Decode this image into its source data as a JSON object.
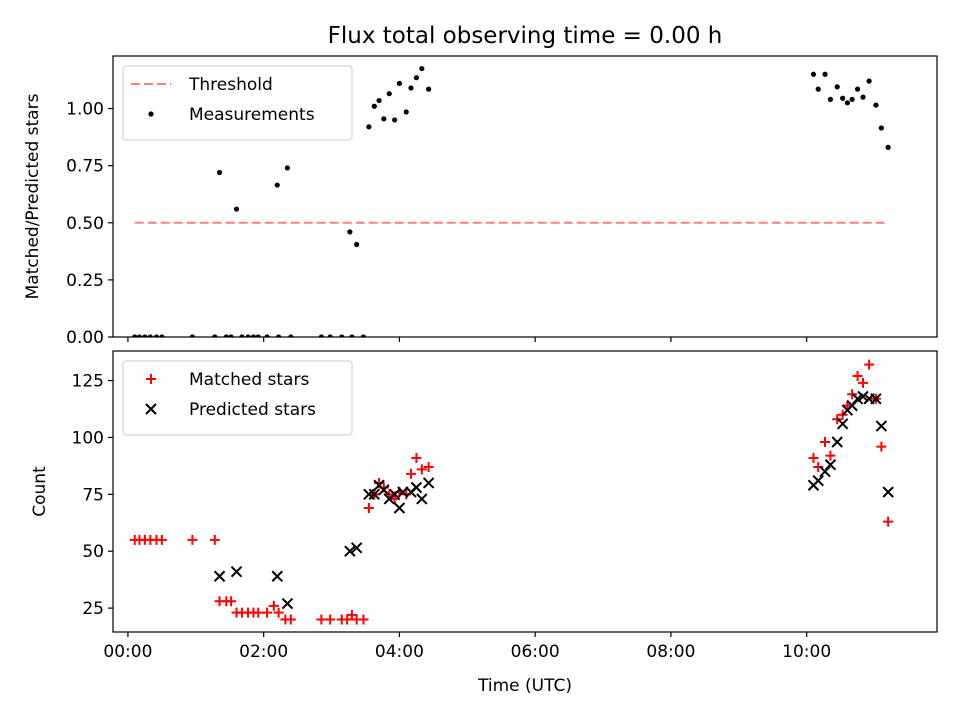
{
  "title": "Flux total observing time = 0.00 h",
  "colors": {
    "threshold": "#ff7f7f",
    "measurements": "#000000",
    "matched": "#ff0000",
    "predicted": "#000000"
  },
  "chart_data": [
    {
      "type": "scatter",
      "ylabel": "Matched/Predicted stars",
      "xlim": [
        -0.22,
        11.92
      ],
      "ylim": [
        0.0,
        1.23
      ],
      "yticks": [
        0.0,
        0.25,
        0.5,
        0.75,
        1.0
      ],
      "ytick_labels": [
        "0.00",
        "0.25",
        "0.50",
        "0.75",
        "1.00"
      ],
      "legend_position": "upper-left",
      "series": [
        {
          "name": "Threshold",
          "kind": "dashed-line",
          "x": [
            0.1,
            11.2
          ],
          "y": [
            0.5,
            0.5
          ]
        },
        {
          "name": "Measurements",
          "kind": "dot",
          "points": [
            [
              0.1,
              0.0
            ],
            [
              0.17,
              0.0
            ],
            [
              0.25,
              0.0
            ],
            [
              0.33,
              0.0
            ],
            [
              0.42,
              0.0
            ],
            [
              0.5,
              0.0
            ],
            [
              0.95,
              0.0
            ],
            [
              1.28,
              0.0
            ],
            [
              1.35,
              0.72
            ],
            [
              1.45,
              0.0
            ],
            [
              1.52,
              0.0
            ],
            [
              1.6,
              0.56
            ],
            [
              1.68,
              0.0
            ],
            [
              1.77,
              0.0
            ],
            [
              1.85,
              0.0
            ],
            [
              1.92,
              0.0
            ],
            [
              2.05,
              0.0
            ],
            [
              2.2,
              0.665
            ],
            [
              2.22,
              0.0
            ],
            [
              2.35,
              0.74
            ],
            [
              2.4,
              0.0
            ],
            [
              2.85,
              0.0
            ],
            [
              2.98,
              0.0
            ],
            [
              3.15,
              0.0
            ],
            [
              3.27,
              0.46
            ],
            [
              3.3,
              0.0
            ],
            [
              3.37,
              0.405
            ],
            [
              3.47,
              0.0
            ],
            [
              3.55,
              0.92
            ],
            [
              3.63,
              1.01
            ],
            [
              3.7,
              1.035
            ],
            [
              3.77,
              0.955
            ],
            [
              3.85,
              1.065
            ],
            [
              3.93,
              0.95
            ],
            [
              4.0,
              1.11
            ],
            [
              4.1,
              0.985
            ],
            [
              4.17,
              1.09
            ],
            [
              4.25,
              1.135
            ],
            [
              4.33,
              1.175
            ],
            [
              4.43,
              1.085
            ],
            [
              10.1,
              1.15
            ],
            [
              10.17,
              1.085
            ],
            [
              10.27,
              1.15
            ],
            [
              10.35,
              1.04
            ],
            [
              10.45,
              1.095
            ],
            [
              10.53,
              1.045
            ],
            [
              10.6,
              1.025
            ],
            [
              10.67,
              1.04
            ],
            [
              10.75,
              1.085
            ],
            [
              10.83,
              1.05
            ],
            [
              10.92,
              1.12
            ],
            [
              11.02,
              1.015
            ],
            [
              11.1,
              0.915
            ],
            [
              11.2,
              0.83
            ]
          ]
        }
      ]
    },
    {
      "type": "scatter",
      "xlabel": "Time (UTC)",
      "ylabel": "Count",
      "xlim": [
        -0.22,
        11.92
      ],
      "ylim": [
        14.5,
        138
      ],
      "yticks": [
        25,
        50,
        75,
        100,
        125
      ],
      "ytick_labels": [
        "25",
        "50",
        "75",
        "100",
        "125"
      ],
      "xticks": [
        0,
        2,
        4,
        6,
        8,
        10
      ],
      "xtick_labels": [
        "00:00",
        "02:00",
        "04:00",
        "06:00",
        "08:00",
        "10:00"
      ],
      "legend_position": "upper-left",
      "series": [
        {
          "name": "Matched stars",
          "kind": "plus",
          "points": [
            [
              0.1,
              55
            ],
            [
              0.17,
              55
            ],
            [
              0.25,
              55
            ],
            [
              0.33,
              55
            ],
            [
              0.42,
              55
            ],
            [
              0.5,
              55
            ],
            [
              0.95,
              55
            ],
            [
              1.28,
              55
            ],
            [
              1.35,
              28
            ],
            [
              1.45,
              28
            ],
            [
              1.52,
              28
            ],
            [
              1.6,
              23
            ],
            [
              1.68,
              23
            ],
            [
              1.77,
              23
            ],
            [
              1.85,
              23
            ],
            [
              1.92,
              23
            ],
            [
              2.05,
              23
            ],
            [
              2.15,
              26
            ],
            [
              2.22,
              23
            ],
            [
              2.32,
              20
            ],
            [
              2.4,
              20
            ],
            [
              2.85,
              20
            ],
            [
              2.98,
              20
            ],
            [
              3.15,
              20
            ],
            [
              3.23,
              20
            ],
            [
              3.3,
              22
            ],
            [
              3.37,
              20
            ],
            [
              3.47,
              20
            ],
            [
              3.55,
              69
            ],
            [
              3.63,
              75
            ],
            [
              3.7,
              80
            ],
            [
              3.77,
              78
            ],
            [
              3.85,
              75
            ],
            [
              3.93,
              73
            ],
            [
              4.0,
              76
            ],
            [
              4.1,
              75
            ],
            [
              4.17,
              84
            ],
            [
              4.25,
              91
            ],
            [
              4.33,
              86
            ],
            [
              4.43,
              87
            ],
            [
              10.1,
              91
            ],
            [
              10.17,
              87
            ],
            [
              10.27,
              98
            ],
            [
              10.35,
              92
            ],
            [
              10.45,
              108
            ],
            [
              10.53,
              110
            ],
            [
              10.6,
              114
            ],
            [
              10.67,
              119
            ],
            [
              10.75,
              127
            ],
            [
              10.83,
              124
            ],
            [
              10.92,
              132
            ],
            [
              11.02,
              117
            ],
            [
              11.1,
              96
            ],
            [
              11.2,
              63
            ]
          ]
        },
        {
          "name": "Predicted stars",
          "kind": "x",
          "points": [
            [
              1.35,
              39
            ],
            [
              1.6,
              41
            ],
            [
              2.2,
              39
            ],
            [
              2.35,
              27
            ],
            [
              3.27,
              50
            ],
            [
              3.37,
              51.5
            ],
            [
              3.55,
              75
            ],
            [
              3.63,
              75
            ],
            [
              3.7,
              79
            ],
            [
              3.77,
              77
            ],
            [
              3.85,
              73
            ],
            [
              3.93,
              75
            ],
            [
              4.0,
              69
            ],
            [
              4.05,
              76
            ],
            [
              4.17,
              76
            ],
            [
              4.25,
              78
            ],
            [
              4.33,
              73
            ],
            [
              4.43,
              80
            ],
            [
              10.1,
              79
            ],
            [
              10.17,
              81
            ],
            [
              10.27,
              85
            ],
            [
              10.35,
              88
            ],
            [
              10.45,
              98
            ],
            [
              10.53,
              106
            ],
            [
              10.6,
              112
            ],
            [
              10.67,
              114
            ],
            [
              10.75,
              117
            ],
            [
              10.83,
              118
            ],
            [
              10.92,
              117
            ],
            [
              11.02,
              117
            ],
            [
              11.1,
              105
            ],
            [
              11.2,
              76
            ]
          ]
        }
      ]
    }
  ]
}
